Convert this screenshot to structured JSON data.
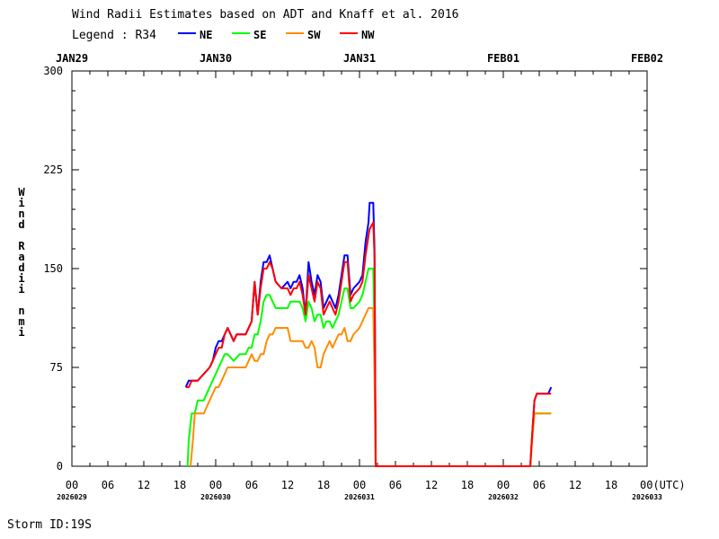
{
  "chart_data": {
    "type": "line",
    "title": "Wind Radii Estimates based on ADT and Knaff et al. 2016",
    "legend_prefix": "Legend : R34",
    "legend_placement": "top-left",
    "ylabel": "Wind Radii nmi",
    "ylim": [
      0,
      300
    ],
    "yticks": [
      "0",
      "75",
      "150",
      "225",
      "300"
    ],
    "xlim": [
      0,
      96
    ],
    "top_dates": [
      "JAN29",
      "JAN30",
      "JAN31",
      "FEB01",
      "FEB02"
    ],
    "bottom_hour_labels": [
      "00",
      "06",
      "12",
      "18",
      "00",
      "06",
      "12",
      "18",
      "00",
      "06",
      "12",
      "18",
      "00",
      "06",
      "12",
      "18",
      "00(UTC)"
    ],
    "bottom_date_labels": [
      "2026029",
      "2026030",
      "2026031",
      "2026032",
      "2026033"
    ],
    "footer": "Storm ID:19S",
    "series": [
      {
        "name": "NE",
        "color": "#0000ff",
        "points": [
          [
            19.0,
            60
          ],
          [
            19.5,
            65
          ],
          [
            20.0,
            65
          ],
          [
            21.0,
            65
          ],
          [
            22.0,
            70
          ],
          [
            23.0,
            75
          ],
          [
            23.5,
            80
          ],
          [
            24.0,
            90
          ],
          [
            24.5,
            95
          ],
          [
            25.0,
            95
          ],
          [
            25.5,
            100
          ],
          [
            26.0,
            105
          ],
          [
            27.0,
            95
          ],
          [
            27.5,
            100
          ],
          [
            28.5,
            100
          ],
          [
            29.0,
            100
          ],
          [
            30.0,
            110
          ],
          [
            30.5,
            140
          ],
          [
            31.0,
            115
          ],
          [
            31.5,
            140
          ],
          [
            32.0,
            155
          ],
          [
            32.5,
            155
          ],
          [
            33.0,
            160
          ],
          [
            33.5,
            150
          ],
          [
            34.0,
            140
          ],
          [
            35.0,
            135
          ],
          [
            36.0,
            140
          ],
          [
            36.5,
            135
          ],
          [
            37.0,
            140
          ],
          [
            37.5,
            140
          ],
          [
            38.0,
            145
          ],
          [
            38.5,
            135
          ],
          [
            39.0,
            115
          ],
          [
            39.5,
            155
          ],
          [
            40.0,
            140
          ],
          [
            40.5,
            130
          ],
          [
            41.0,
            145
          ],
          [
            41.5,
            140
          ],
          [
            42.0,
            120
          ],
          [
            42.5,
            125
          ],
          [
            43.0,
            130
          ],
          [
            43.5,
            125
          ],
          [
            44.0,
            120
          ],
          [
            44.5,
            130
          ],
          [
            45.0,
            145
          ],
          [
            45.5,
            160
          ],
          [
            46.0,
            160
          ],
          [
            46.5,
            130
          ],
          [
            47.0,
            135
          ],
          [
            48.0,
            140
          ],
          [
            48.5,
            145
          ],
          [
            49.0,
            170
          ],
          [
            49.5,
            185
          ],
          [
            49.7,
            200
          ],
          [
            50.3,
            200
          ],
          [
            50.5,
            165
          ],
          [
            50.7,
            0
          ],
          [
            76.5,
            0
          ],
          [
            76.9,
            30
          ],
          [
            77.2,
            50
          ],
          [
            77.6,
            55
          ],
          [
            79.0,
            55
          ],
          [
            79.5,
            55
          ],
          [
            80.0,
            60
          ]
        ]
      },
      {
        "name": "SE",
        "color": "#00ff00",
        "points": [
          [
            19.3,
            0
          ],
          [
            19.5,
            20
          ],
          [
            20.0,
            40
          ],
          [
            20.5,
            40
          ],
          [
            21.0,
            50
          ],
          [
            22.0,
            50
          ],
          [
            22.5,
            55
          ],
          [
            23.0,
            60
          ],
          [
            24.0,
            70
          ],
          [
            24.5,
            75
          ],
          [
            25.0,
            80
          ],
          [
            25.5,
            85
          ],
          [
            26.0,
            85
          ],
          [
            27.0,
            80
          ],
          [
            28.0,
            85
          ],
          [
            29.0,
            85
          ],
          [
            29.5,
            90
          ],
          [
            30.0,
            90
          ],
          [
            30.5,
            100
          ],
          [
            31.0,
            100
          ],
          [
            31.5,
            110
          ],
          [
            32.0,
            125
          ],
          [
            32.5,
            130
          ],
          [
            33.0,
            130
          ],
          [
            33.5,
            125
          ],
          [
            34.0,
            120
          ],
          [
            35.0,
            120
          ],
          [
            36.0,
            120
          ],
          [
            36.5,
            125
          ],
          [
            37.0,
            125
          ],
          [
            37.5,
            125
          ],
          [
            38.0,
            125
          ],
          [
            38.5,
            120
          ],
          [
            39.0,
            110
          ],
          [
            39.5,
            125
          ],
          [
            40.0,
            120
          ],
          [
            40.5,
            110
          ],
          [
            41.0,
            115
          ],
          [
            41.5,
            115
          ],
          [
            42.0,
            105
          ],
          [
            42.5,
            110
          ],
          [
            43.0,
            110
          ],
          [
            43.5,
            105
          ],
          [
            44.0,
            110
          ],
          [
            44.5,
            115
          ],
          [
            45.0,
            125
          ],
          [
            45.5,
            135
          ],
          [
            46.0,
            135
          ],
          [
            46.5,
            120
          ],
          [
            47.0,
            120
          ],
          [
            48.0,
            125
          ],
          [
            48.5,
            130
          ],
          [
            49.0,
            140
          ],
          [
            49.5,
            150
          ],
          [
            49.7,
            150
          ],
          [
            50.3,
            150
          ],
          [
            50.5,
            100
          ],
          [
            50.7,
            0
          ],
          [
            76.5,
            0
          ],
          [
            76.9,
            30
          ],
          [
            77.2,
            40
          ],
          [
            77.6,
            40
          ],
          [
            80.0,
            40
          ]
        ]
      },
      {
        "name": "SW",
        "color": "#ff8c00",
        "points": [
          [
            19.8,
            0
          ],
          [
            20.2,
            20
          ],
          [
            20.5,
            40
          ],
          [
            21.0,
            40
          ],
          [
            22.0,
            40
          ],
          [
            22.5,
            45
          ],
          [
            23.0,
            50
          ],
          [
            24.0,
            60
          ],
          [
            24.5,
            60
          ],
          [
            25.0,
            65
          ],
          [
            25.5,
            70
          ],
          [
            26.0,
            75
          ],
          [
            27.0,
            75
          ],
          [
            28.0,
            75
          ],
          [
            29.0,
            75
          ],
          [
            29.5,
            80
          ],
          [
            30.0,
            85
          ],
          [
            30.5,
            80
          ],
          [
            31.0,
            80
          ],
          [
            31.5,
            85
          ],
          [
            32.0,
            85
          ],
          [
            32.5,
            95
          ],
          [
            33.0,
            100
          ],
          [
            33.5,
            100
          ],
          [
            34.0,
            105
          ],
          [
            35.0,
            105
          ],
          [
            36.0,
            105
          ],
          [
            36.5,
            95
          ],
          [
            37.0,
            95
          ],
          [
            38.0,
            95
          ],
          [
            38.5,
            95
          ],
          [
            39.0,
            90
          ],
          [
            39.5,
            90
          ],
          [
            40.0,
            95
          ],
          [
            40.5,
            90
          ],
          [
            41.0,
            75
          ],
          [
            41.5,
            75
          ],
          [
            42.0,
            85
          ],
          [
            42.5,
            90
          ],
          [
            43.0,
            95
          ],
          [
            43.5,
            90
          ],
          [
            44.0,
            95
          ],
          [
            44.5,
            100
          ],
          [
            45.0,
            100
          ],
          [
            45.5,
            105
          ],
          [
            46.0,
            95
          ],
          [
            46.5,
            95
          ],
          [
            47.0,
            100
          ],
          [
            48.0,
            105
          ],
          [
            48.5,
            110
          ],
          [
            49.0,
            115
          ],
          [
            49.5,
            120
          ],
          [
            49.7,
            120
          ],
          [
            50.3,
            120
          ],
          [
            50.5,
            70
          ],
          [
            50.7,
            0
          ],
          [
            76.5,
            0
          ],
          [
            76.9,
            25
          ],
          [
            77.2,
            40
          ],
          [
            77.6,
            40
          ],
          [
            80.0,
            40
          ]
        ]
      },
      {
        "name": "NW",
        "color": "#ff0000",
        "points": [
          [
            19.0,
            60
          ],
          [
            19.5,
            60
          ],
          [
            20.0,
            65
          ],
          [
            21.0,
            65
          ],
          [
            22.0,
            70
          ],
          [
            23.0,
            75
          ],
          [
            23.5,
            80
          ],
          [
            24.0,
            85
          ],
          [
            24.5,
            90
          ],
          [
            25.0,
            90
          ],
          [
            25.5,
            100
          ],
          [
            26.0,
            105
          ],
          [
            27.0,
            95
          ],
          [
            27.5,
            100
          ],
          [
            28.5,
            100
          ],
          [
            29.0,
            100
          ],
          [
            30.0,
            110
          ],
          [
            30.5,
            140
          ],
          [
            31.0,
            115
          ],
          [
            31.5,
            135
          ],
          [
            32.0,
            150
          ],
          [
            32.5,
            150
          ],
          [
            33.0,
            155
          ],
          [
            33.5,
            150
          ],
          [
            34.0,
            140
          ],
          [
            35.0,
            135
          ],
          [
            36.0,
            135
          ],
          [
            36.5,
            130
          ],
          [
            37.0,
            135
          ],
          [
            37.5,
            135
          ],
          [
            38.0,
            140
          ],
          [
            38.5,
            130
          ],
          [
            39.0,
            115
          ],
          [
            39.5,
            145
          ],
          [
            40.0,
            135
          ],
          [
            40.5,
            125
          ],
          [
            41.0,
            140
          ],
          [
            41.5,
            135
          ],
          [
            42.0,
            115
          ],
          [
            42.5,
            120
          ],
          [
            43.0,
            125
          ],
          [
            43.5,
            120
          ],
          [
            44.0,
            115
          ],
          [
            44.5,
            125
          ],
          [
            45.0,
            140
          ],
          [
            45.5,
            155
          ],
          [
            46.0,
            155
          ],
          [
            46.5,
            125
          ],
          [
            47.0,
            130
          ],
          [
            48.0,
            135
          ],
          [
            48.5,
            140
          ],
          [
            49.0,
            160
          ],
          [
            49.5,
            175
          ],
          [
            49.7,
            180
          ],
          [
            50.3,
            185
          ],
          [
            50.5,
            160
          ],
          [
            50.7,
            0
          ],
          [
            76.5,
            0
          ],
          [
            76.9,
            30
          ],
          [
            77.2,
            50
          ],
          [
            77.6,
            55
          ],
          [
            79.0,
            55
          ],
          [
            80.0,
            55
          ]
        ]
      }
    ]
  }
}
